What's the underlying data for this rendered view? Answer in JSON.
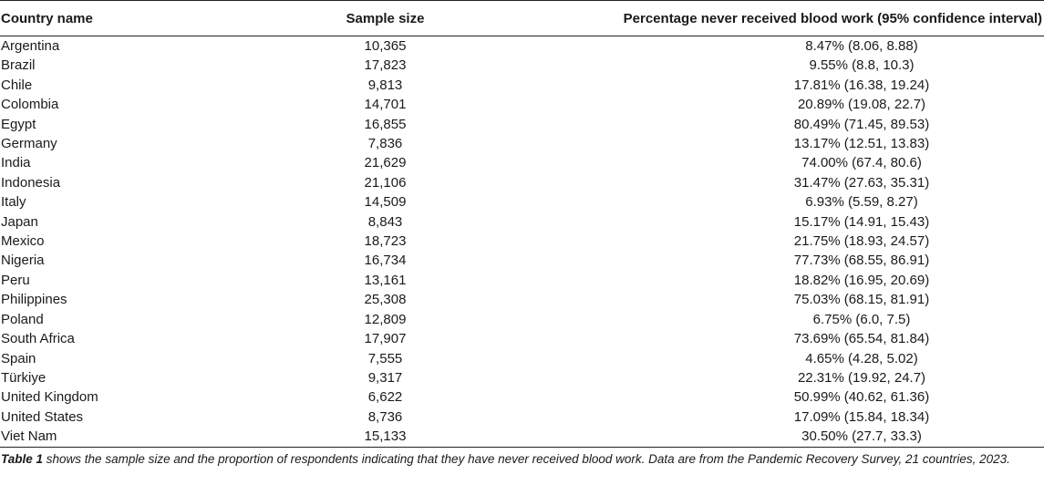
{
  "table": {
    "headers": {
      "country": "Country name",
      "sample": "Sample size",
      "percentage": "Percentage never received blood work (95% confidence interval)"
    },
    "rows": [
      {
        "country": "Argentina",
        "sample": "10,365",
        "percentage": "8.47% (8.06, 8.88)"
      },
      {
        "country": "Brazil",
        "sample": "17,823",
        "percentage": "9.55% (8.8, 10.3)"
      },
      {
        "country": "Chile",
        "sample": "9,813",
        "percentage": "17.81% (16.38, 19.24)"
      },
      {
        "country": "Colombia",
        "sample": "14,701",
        "percentage": "20.89% (19.08, 22.7)"
      },
      {
        "country": "Egypt",
        "sample": "16,855",
        "percentage": "80.49% (71.45, 89.53)"
      },
      {
        "country": "Germany",
        "sample": "7,836",
        "percentage": "13.17% (12.51, 13.83)"
      },
      {
        "country": "India",
        "sample": "21,629",
        "percentage": "74.00% (67.4, 80.6)"
      },
      {
        "country": "Indonesia",
        "sample": "21,106",
        "percentage": "31.47% (27.63, 35.31)"
      },
      {
        "country": "Italy",
        "sample": "14,509",
        "percentage": "6.93% (5.59, 8.27)"
      },
      {
        "country": "Japan",
        "sample": "8,843",
        "percentage": "15.17% (14.91, 15.43)"
      },
      {
        "country": "Mexico",
        "sample": "18,723",
        "percentage": "21.75% (18.93, 24.57)"
      },
      {
        "country": "Nigeria",
        "sample": "16,734",
        "percentage": "77.73% (68.55, 86.91)"
      },
      {
        "country": "Peru",
        "sample": "13,161",
        "percentage": "18.82% (16.95, 20.69)"
      },
      {
        "country": "Philippines",
        "sample": "25,308",
        "percentage": "75.03% (68.15, 81.91)"
      },
      {
        "country": "Poland",
        "sample": "12,809",
        "percentage": "6.75% (6.0, 7.5)"
      },
      {
        "country": "South Africa",
        "sample": "17,907",
        "percentage": "73.69% (65.54, 81.84)"
      },
      {
        "country": "Spain",
        "sample": "7,555",
        "percentage": "4.65% (4.28, 5.02)"
      },
      {
        "country": "Türkiye",
        "sample": "9,317",
        "percentage": "22.31% (19.92, 24.7)"
      },
      {
        "country": "United Kingdom",
        "sample": "6,622",
        "percentage": "50.99% (40.62, 61.36)"
      },
      {
        "country": "United States",
        "sample": "8,736",
        "percentage": "17.09% (15.84, 18.34)"
      },
      {
        "country": "Viet Nam",
        "sample": "15,133",
        "percentage": "30.50% (27.7, 33.3)"
      }
    ]
  },
  "caption": {
    "label": "Table 1",
    "text": " shows the sample size and the proportion of respondents indicating that they have never received blood work. Data are from the Pandemic Recovery Survey, 21 countries, 2023."
  }
}
